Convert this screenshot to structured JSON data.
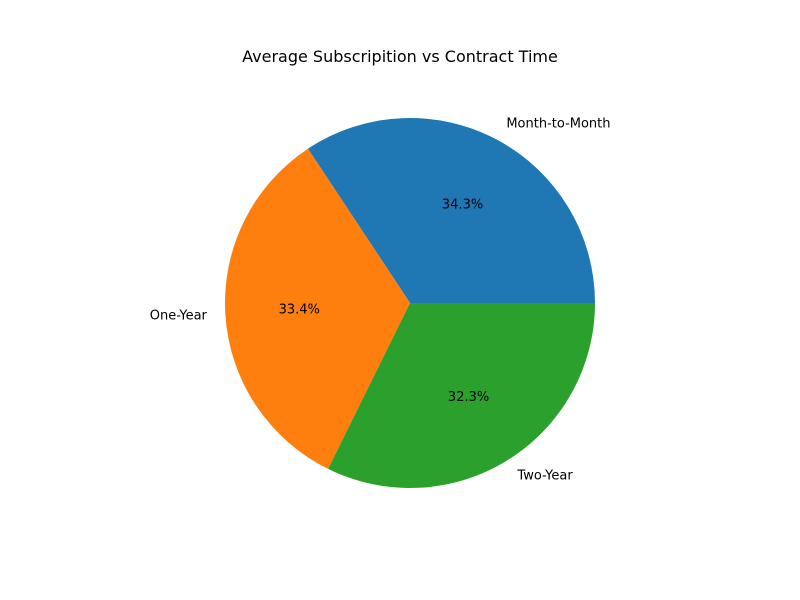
{
  "chart_data": {
    "type": "pie",
    "title": "Average Subscripition vs Contract Time",
    "slices": [
      {
        "label": "Month-to-Month",
        "percent": 34.3,
        "percent_label": "34.3%",
        "color": "#1f77b4"
      },
      {
        "label": "One-Year",
        "percent": 33.4,
        "percent_label": "33.4%",
        "color": "#ff7f0e"
      },
      {
        "label": "Two-Year",
        "percent": 32.3,
        "percent_label": "32.3%",
        "color": "#2ca02c"
      }
    ],
    "start_angle_deg": 0,
    "direction": "counterclockwise"
  }
}
